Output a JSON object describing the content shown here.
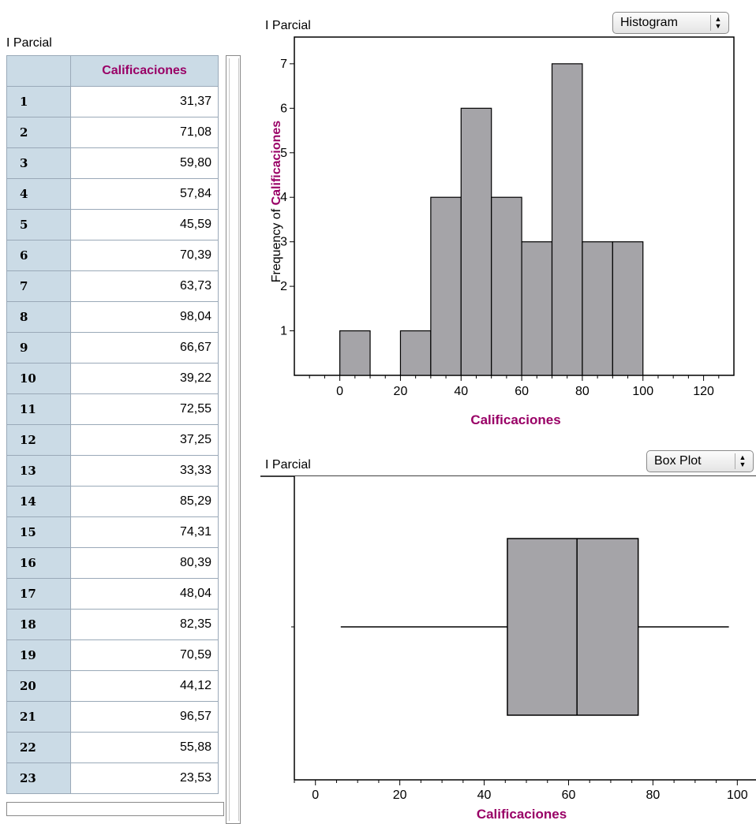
{
  "table_panel": {
    "title": "I Parcial",
    "column_header": "Calificaciones",
    "rows": [
      {
        "index": "1",
        "value": "31,37"
      },
      {
        "index": "2",
        "value": "71,08"
      },
      {
        "index": "3",
        "value": "59,80"
      },
      {
        "index": "4",
        "value": "57,84"
      },
      {
        "index": "5",
        "value": "45,59"
      },
      {
        "index": "6",
        "value": "70,39"
      },
      {
        "index": "7",
        "value": "63,73"
      },
      {
        "index": "8",
        "value": "98,04"
      },
      {
        "index": "9",
        "value": "66,67"
      },
      {
        "index": "10",
        "value": "39,22"
      },
      {
        "index": "11",
        "value": "72,55"
      },
      {
        "index": "12",
        "value": "37,25"
      },
      {
        "index": "13",
        "value": "33,33"
      },
      {
        "index": "14",
        "value": "85,29"
      },
      {
        "index": "15",
        "value": "74,31"
      },
      {
        "index": "16",
        "value": "80,39"
      },
      {
        "index": "17",
        "value": "48,04"
      },
      {
        "index": "18",
        "value": "82,35"
      },
      {
        "index": "19",
        "value": "70,59"
      },
      {
        "index": "20",
        "value": "44,12"
      },
      {
        "index": "21",
        "value": "96,57"
      },
      {
        "index": "22",
        "value": "55,88"
      },
      {
        "index": "23",
        "value": "23,53"
      }
    ]
  },
  "histogram_panel": {
    "title": "I Parcial",
    "popup_label": "Histogram"
  },
  "boxplot_panel": {
    "title": "I Parcial",
    "popup_label": "Box Plot"
  },
  "colors": {
    "accent": "#990066",
    "header_fill": "#cbdbe6",
    "bar_fill": "#a5a4a8"
  },
  "chart_data": [
    {
      "type": "bar",
      "subtype": "histogram",
      "bins": [
        {
          "from": 0,
          "to": 10,
          "count": 1
        },
        {
          "from": 10,
          "to": 20,
          "count": 0
        },
        {
          "from": 20,
          "to": 30,
          "count": 1
        },
        {
          "from": 30,
          "to": 40,
          "count": 4
        },
        {
          "from": 40,
          "to": 50,
          "count": 6
        },
        {
          "from": 50,
          "to": 60,
          "count": 4
        },
        {
          "from": 60,
          "to": 70,
          "count": 3
        },
        {
          "from": 70,
          "to": 80,
          "count": 7
        },
        {
          "from": 80,
          "to": 90,
          "count": 3
        },
        {
          "from": 90,
          "to": 100,
          "count": 3
        }
      ],
      "xlabel": "Calificaciones",
      "ylabel_prefix": "Frequency of ",
      "ylabel_var": "Calificaciones",
      "xlim": [
        -15,
        130
      ],
      "ylim": [
        0,
        7.6
      ],
      "xticks": [
        0,
        20,
        40,
        60,
        80,
        100,
        120
      ],
      "yticks": [
        1,
        2,
        3,
        4,
        5,
        6,
        7
      ],
      "grid": false
    },
    {
      "type": "box",
      "min": 6,
      "q1": 45.5,
      "median": 62,
      "q3": 76.5,
      "max": 98,
      "xlabel": "Calificaciones",
      "xlim": [
        -5,
        102
      ],
      "xticks": [
        0,
        20,
        40,
        60,
        80,
        100
      ],
      "grid": false
    }
  ]
}
